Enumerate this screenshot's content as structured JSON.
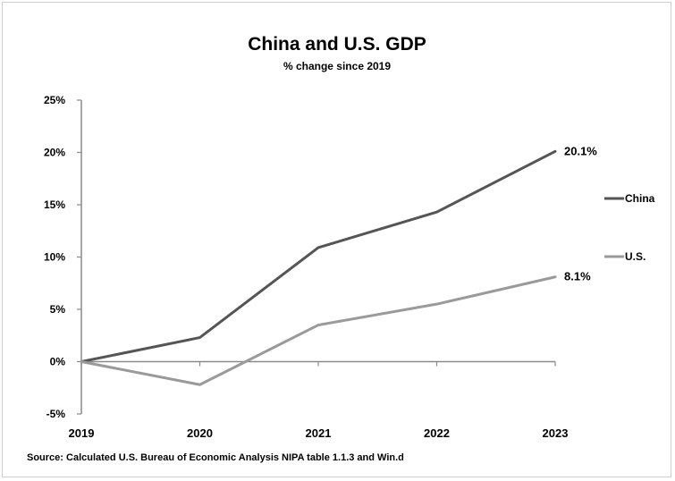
{
  "chart_data": {
    "type": "line",
    "title": "China and U.S. GDP",
    "subtitle": "% change since 2019",
    "xlabel": "",
    "ylabel": "",
    "x": [
      "2019",
      "2020",
      "2021",
      "2022",
      "2023"
    ],
    "y_ticks": [
      "-5%",
      "0%",
      "5%",
      "10%",
      "15%",
      "20%",
      "25%"
    ],
    "ylim": [
      -5,
      25
    ],
    "grid": false,
    "legend_position": "right",
    "series": [
      {
        "name": "China",
        "values": [
          0,
          2.3,
          10.9,
          14.3,
          20.1
        ],
        "end_label": "20.1%",
        "color": "#555555"
      },
      {
        "name": "U.S.",
        "values": [
          0,
          -2.2,
          3.5,
          5.5,
          8.1
        ],
        "end_label": "8.1%",
        "color": "#9a9a9a"
      }
    ],
    "source": "Source:  Calculated U.S. Bureau of Economic Analysis NIPA table 1.1.3 and Win.d"
  }
}
